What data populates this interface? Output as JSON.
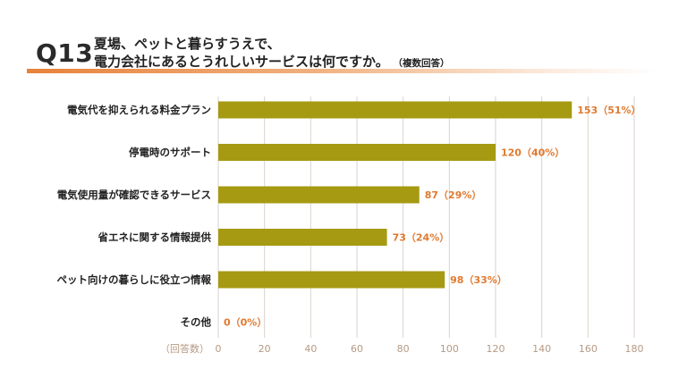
{
  "question": {
    "number": "Q13",
    "line1": "夏場、ペットと暮らすうえで、",
    "line2": "電力会社にあるとうれしいサービスは何ですか。",
    "note": "（複数回答）"
  },
  "colors": {
    "bar": "#a59a12",
    "value_label": "#e07a30",
    "accent": "#e8823a",
    "grid": "#d9d2cc",
    "tick": "#b59a85"
  },
  "chart_data": {
    "type": "bar",
    "orientation": "horizontal",
    "categories": [
      "電気代を抑えられる料金プラン",
      "停電時のサポート",
      "電気使用量が確認できるサービス",
      "省エネに関する情報提供",
      "ペット向けの暮らしに役立つ情報",
      "その他"
    ],
    "values": [
      153,
      120,
      87,
      73,
      98,
      0
    ],
    "percent_labels": [
      "153（51%）",
      "120（40%）",
      "87（29%）",
      "73（24%）",
      "98（33%）",
      "0（0%）"
    ],
    "xlabel": "（回答数）",
    "xlim": [
      0,
      180
    ],
    "xticks": [
      0,
      20,
      40,
      60,
      80,
      100,
      120,
      140,
      160,
      180
    ],
    "grid": true
  }
}
